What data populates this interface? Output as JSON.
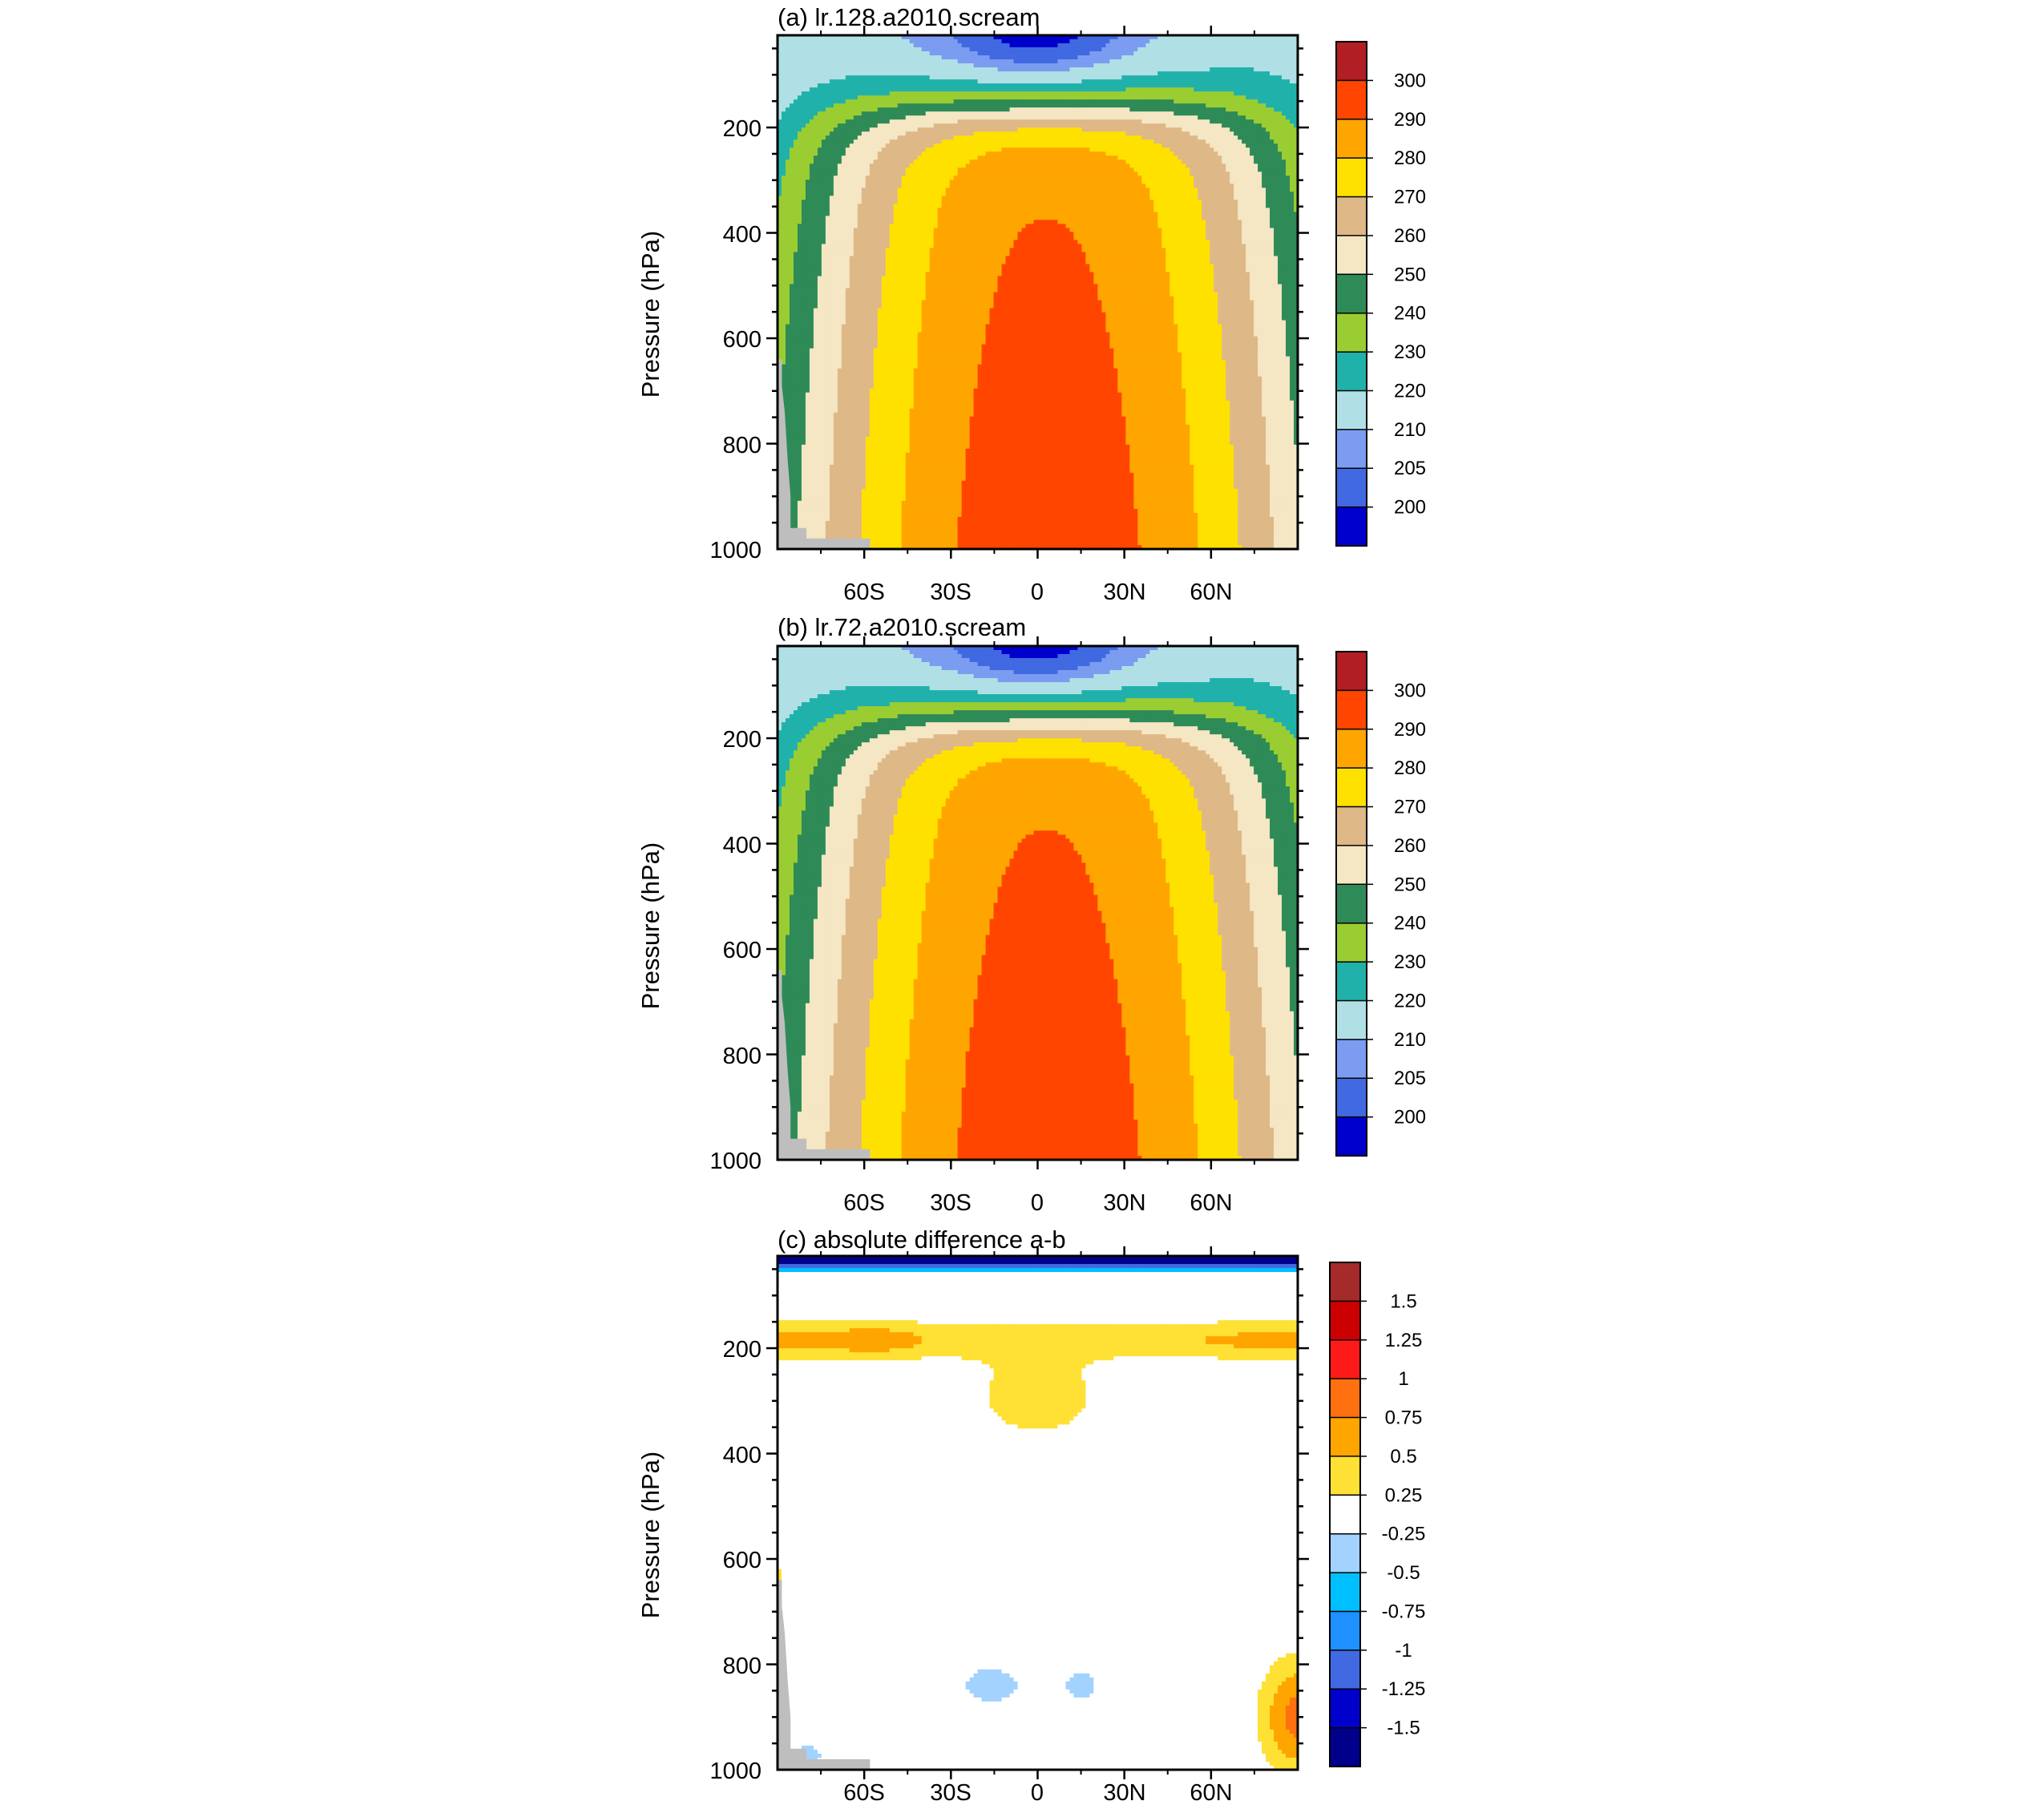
{
  "chart_data": [
    {
      "type": "contour",
      "title": "(a) lr.128.a2010.scream",
      "ylabel": "Pressure (hPa)",
      "xlabel": "",
      "x_tick_labels": [
        "60S",
        "30S",
        "0",
        "30N",
        "60N"
      ],
      "x_tick_values": [
        -60,
        -30,
        0,
        30,
        60
      ],
      "xlim": [
        -90,
        90
      ],
      "y_tick_labels": [
        "200",
        "400",
        "600",
        "800",
        "1000"
      ],
      "y_tick_values": [
        200,
        400,
        600,
        800,
        1000
      ],
      "ylim": [
        25,
        1000
      ],
      "y_reversed": true,
      "colorbar": {
        "labels": [
          "300",
          "290",
          "280",
          "270",
          "260",
          "250",
          "240",
          "230",
          "220",
          "210",
          "205",
          "200"
        ],
        "colors": [
          "#b11e23",
          "#ff4500",
          "#ffa500",
          "#ffe100",
          "#deb887",
          "#f5e6c4",
          "#2e8b57",
          "#9acd32",
          "#20b2aa",
          "#b0e0e6",
          "#7b9cf0",
          "#4169e1",
          "#0000cd"
        ]
      },
      "contour_levels": [
        200,
        205,
        210,
        220,
        230,
        240,
        250,
        260,
        270,
        280,
        290,
        300
      ],
      "variant": "a"
    },
    {
      "type": "contour",
      "title": "(b) lr.72.a2010.scream",
      "ylabel": "Pressure (hPa)",
      "xlabel": "",
      "x_tick_labels": [
        "60S",
        "30S",
        "0",
        "30N",
        "60N"
      ],
      "x_tick_values": [
        -60,
        -30,
        0,
        30,
        60
      ],
      "xlim": [
        -90,
        90
      ],
      "y_tick_labels": [
        "200",
        "400",
        "600",
        "800",
        "1000"
      ],
      "y_tick_values": [
        200,
        400,
        600,
        800,
        1000
      ],
      "ylim": [
        25,
        1000
      ],
      "y_reversed": true,
      "colorbar": {
        "labels": [
          "300",
          "290",
          "280",
          "270",
          "260",
          "250",
          "240",
          "230",
          "220",
          "210",
          "205",
          "200"
        ],
        "colors": [
          "#b11e23",
          "#ff4500",
          "#ffa500",
          "#ffe100",
          "#deb887",
          "#f5e6c4",
          "#2e8b57",
          "#9acd32",
          "#20b2aa",
          "#b0e0e6",
          "#7b9cf0",
          "#4169e1",
          "#0000cd"
        ]
      },
      "contour_levels": [
        200,
        205,
        210,
        220,
        230,
        240,
        250,
        260,
        270,
        280,
        290,
        300
      ],
      "variant": "b"
    },
    {
      "type": "contour",
      "title": "(c) absolute difference a-b",
      "ylabel": "Pressure (hPa)",
      "xlabel": "",
      "x_tick_labels": [
        "60S",
        "30S",
        "0",
        "30N",
        "60N"
      ],
      "x_tick_values": [
        -60,
        -30,
        0,
        30,
        60
      ],
      "xlim": [
        -90,
        90
      ],
      "y_tick_labels": [
        "200",
        "400",
        "600",
        "800",
        "1000"
      ],
      "y_tick_values": [
        200,
        400,
        600,
        800,
        1000
      ],
      "ylim": [
        25,
        1000
      ],
      "y_reversed": true,
      "colorbar": {
        "labels": [
          "1.5",
          "1.25",
          "1",
          "0.75",
          "0.5",
          "0.25",
          "-0.25",
          "-0.5",
          "-0.75",
          "-1",
          "-1.25",
          "-1.5"
        ],
        "colors": [
          "#a52a2a",
          "#cc0000",
          "#ff1a1a",
          "#ff7010",
          "#ffa500",
          "#ffe135",
          "#ffffff",
          "#a3d2ff",
          "#00bfff",
          "#1e90ff",
          "#4169e1",
          "#0000cd",
          "#00008b"
        ]
      },
      "contour_levels": [
        -1.5,
        -1.25,
        -1,
        -0.75,
        -0.5,
        -0.25,
        0.25,
        0.5,
        0.75,
        1,
        1.25,
        1.5
      ],
      "variant": "c"
    }
  ],
  "colors": {
    "missing": "#bebebe",
    "frame": "#000000"
  }
}
